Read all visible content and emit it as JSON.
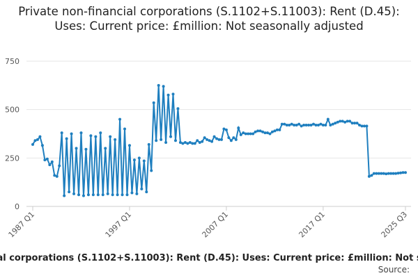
{
  "chart_data": {
    "type": "line",
    "title": "Private non-financial corporations (S.1102+S.11003): Rent (D.45): Uses: Current price: £million: Not seasonally adjusted",
    "source": "Source:",
    "color": "#1f7fbf",
    "grid": true,
    "ylim": [
      0,
      750
    ],
    "yticks": [
      0,
      250,
      500,
      750
    ],
    "categories": [
      "1987 Q1",
      null,
      null,
      null,
      null,
      null,
      null,
      null,
      null,
      null,
      null,
      null,
      null,
      null,
      null,
      null,
      null,
      null,
      null,
      null,
      null,
      null,
      null,
      null,
      null,
      null,
      null,
      null,
      null,
      null,
      null,
      null,
      null,
      null,
      null,
      null,
      null,
      null,
      null,
      null,
      "1997 Q1",
      null,
      null,
      null,
      null,
      null,
      null,
      null,
      null,
      null,
      null,
      null,
      null,
      null,
      null,
      null,
      null,
      null,
      null,
      null,
      null,
      null,
      null,
      null,
      null,
      null,
      null,
      null,
      null,
      null,
      null,
      null,
      null,
      null,
      null,
      null,
      null,
      null,
      null,
      null,
      "2007 Q1",
      null,
      null,
      null,
      null,
      null,
      null,
      null,
      null,
      null,
      null,
      null,
      null,
      null,
      null,
      null,
      null,
      null,
      null,
      null,
      null,
      null,
      null,
      null,
      null,
      null,
      null,
      null,
      null,
      null,
      null,
      null,
      null,
      null,
      null,
      null,
      null,
      null,
      null,
      null,
      "2017 Q1",
      null,
      null,
      null,
      null,
      null,
      null,
      null,
      null,
      null,
      null,
      null,
      null,
      null,
      null,
      null,
      null,
      null,
      null,
      null,
      null,
      null,
      null,
      null,
      null,
      null,
      null,
      null,
      null,
      null,
      null,
      null,
      null,
      null,
      "2025 Q3"
    ],
    "values": [
      320,
      340,
      345,
      360,
      315,
      240,
      245,
      215,
      230,
      160,
      155,
      210,
      380,
      55,
      350,
      75,
      375,
      65,
      300,
      60,
      380,
      55,
      295,
      60,
      365,
      60,
      360,
      60,
      380,
      60,
      300,
      65,
      360,
      60,
      345,
      60,
      450,
      60,
      400,
      60,
      315,
      70,
      240,
      65,
      250,
      90,
      235,
      75,
      320,
      185,
      535,
      340,
      625,
      345,
      620,
      330,
      575,
      360,
      580,
      340,
      505,
      330,
      325,
      330,
      325,
      330,
      325,
      325,
      340,
      330,
      335,
      355,
      345,
      340,
      335,
      360,
      350,
      345,
      345,
      400,
      395,
      355,
      340,
      355,
      345,
      405,
      370,
      380,
      375,
      375,
      375,
      375,
      385,
      390,
      390,
      385,
      380,
      380,
      375,
      385,
      390,
      395,
      395,
      425,
      425,
      420,
      420,
      425,
      420,
      420,
      425,
      415,
      420,
      420,
      420,
      420,
      425,
      420,
      420,
      425,
      420,
      420,
      450,
      420,
      425,
      430,
      435,
      440,
      440,
      435,
      440,
      440,
      430,
      430,
      430,
      420,
      415,
      415,
      415,
      155,
      160,
      170,
      170,
      170,
      170,
      170,
      168,
      170,
      170,
      170,
      170,
      172,
      173,
      175,
      175
    ]
  }
}
